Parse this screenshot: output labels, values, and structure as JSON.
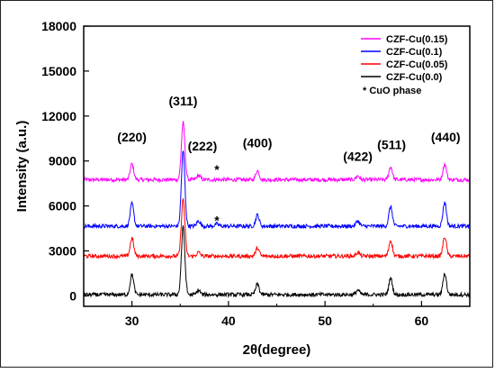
{
  "chart_data": {
    "type": "line",
    "xlabel": "2θ(degree)",
    "ylabel": "Intensity (a.u.)",
    "xlim": [
      25,
      65
    ],
    "ylim": [
      -700,
      18000
    ],
    "x_ticks": [
      30,
      40,
      50,
      60
    ],
    "y_ticks": [
      0,
      3000,
      6000,
      9000,
      12000,
      15000,
      18000
    ],
    "grid": false,
    "legend_position": "top-right",
    "series": [
      {
        "name": "CZF-Cu(0.15)",
        "color": "#ff00ff",
        "baseline": 7750,
        "peaks": [
          [
            30.0,
            1050
          ],
          [
            35.3,
            3800
          ],
          [
            36.9,
            300
          ],
          [
            43.0,
            600
          ],
          [
            53.4,
            250
          ],
          [
            56.8,
            850
          ],
          [
            62.4,
            1050
          ]
        ]
      },
      {
        "name": "CZF-Cu(0.1)",
        "color": "#0000ff",
        "baseline": 4650,
        "peaks": [
          [
            30.0,
            1500
          ],
          [
            35.3,
            5000
          ],
          [
            36.9,
            350
          ],
          [
            38.8,
            150
          ],
          [
            43.0,
            750
          ],
          [
            53.4,
            350
          ],
          [
            56.8,
            1300
          ],
          [
            62.4,
            1600
          ]
        ]
      },
      {
        "name": "CZF-Cu(0.05)",
        "color": "#ff0000",
        "baseline": 2650,
        "peaks": [
          [
            30.0,
            1200
          ],
          [
            35.3,
            3800
          ],
          [
            36.9,
            250
          ],
          [
            43.0,
            550
          ],
          [
            53.4,
            250
          ],
          [
            56.8,
            1050
          ],
          [
            62.4,
            1300
          ]
        ]
      },
      {
        "name": "CZF-Cu(0.0)",
        "color": "#000000",
        "baseline": 80,
        "peaks": [
          [
            30.0,
            1350
          ],
          [
            35.3,
            4500
          ],
          [
            36.9,
            300
          ],
          [
            43.0,
            700
          ],
          [
            53.4,
            300
          ],
          [
            56.8,
            1100
          ],
          [
            62.4,
            1400
          ]
        ]
      }
    ],
    "peak_labels": [
      {
        "text": "(220)",
        "x": 30.0,
        "y": 10300
      },
      {
        "text": "(311)",
        "x": 35.3,
        "y": 12700
      },
      {
        "text": "(222)",
        "x": 37.3,
        "y": 9700
      },
      {
        "text": "(400)",
        "x": 43.0,
        "y": 9900
      },
      {
        "text": "(422)",
        "x": 53.4,
        "y": 9000
      },
      {
        "text": "(511)",
        "x": 56.9,
        "y": 9800
      },
      {
        "text": "(440)",
        "x": 62.5,
        "y": 10300
      }
    ],
    "cuo_markers": [
      {
        "text": "*",
        "x": 38.8,
        "y": 8150
      },
      {
        "text": "*",
        "x": 38.8,
        "y": 4750
      }
    ],
    "legend_note": "*  CuO phase"
  }
}
